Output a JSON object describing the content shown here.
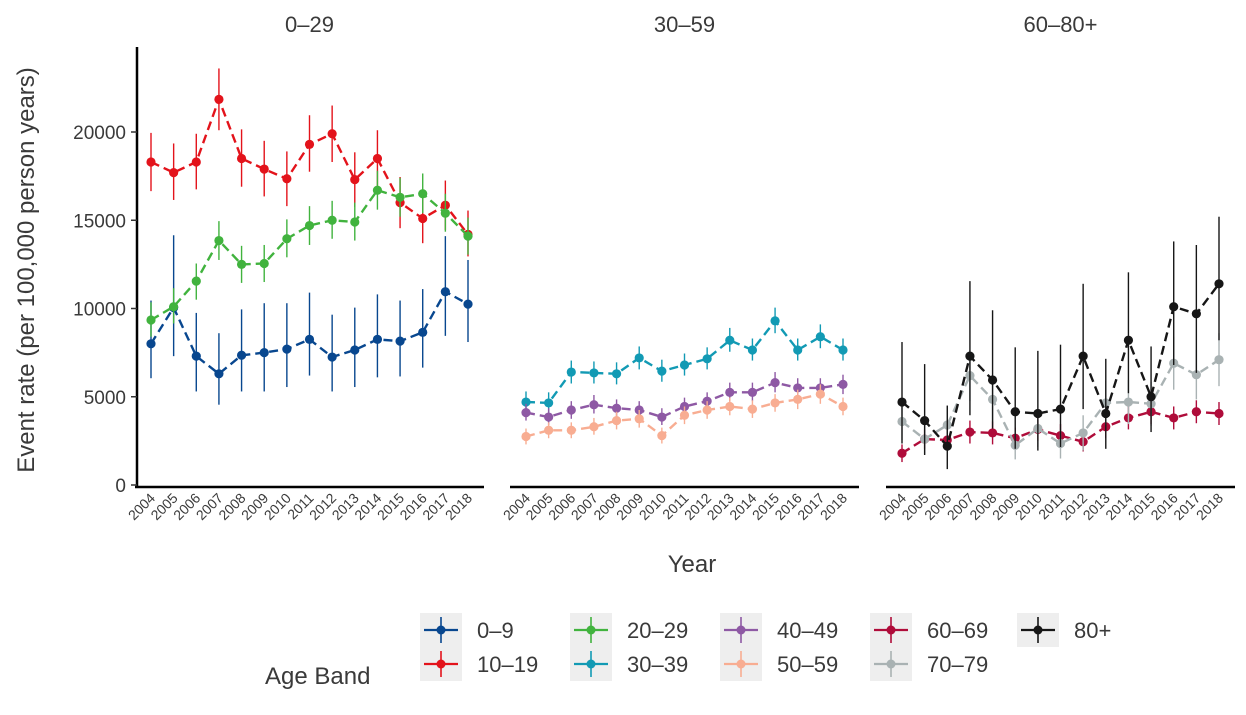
{
  "chart_data": {
    "type": "line",
    "ylabel": "Event rate (per 100,000 person years)",
    "xlabel": "Year",
    "ylim": [
      0,
      24500
    ],
    "yticks": [
      0,
      5000,
      10000,
      15000,
      20000
    ],
    "x": [
      "2004",
      "2005",
      "2006",
      "2007",
      "2008",
      "2009",
      "2010",
      "2011",
      "2012",
      "2013",
      "2014",
      "2015",
      "2016",
      "2017",
      "2018"
    ],
    "panels": [
      {
        "title": "0–29",
        "series": [
          "0–9",
          "10–19",
          "20–29"
        ]
      },
      {
        "title": "30–59",
        "series": [
          "30–39",
          "40–49",
          "50–59"
        ]
      },
      {
        "title": "60–80+",
        "series": [
          "60–69",
          "70–79",
          "80+"
        ]
      }
    ],
    "legend": {
      "title": "Age Band",
      "position": "bottom"
    },
    "series": [
      {
        "name": "0–9",
        "color": "#08478f",
        "values": [
          8000,
          10050,
          7300,
          6300,
          7350,
          7500,
          7700,
          8250,
          7250,
          7650,
          8250,
          8150,
          8650,
          10950,
          10250
        ],
        "lower": [
          6050,
          7300,
          5300,
          4550,
          5300,
          5300,
          5550,
          6200,
          5300,
          5550,
          6100,
          6150,
          6650,
          8450,
          8100
        ],
        "upper": [
          10450,
          14150,
          9750,
          8600,
          9950,
          10300,
          10300,
          10900,
          9650,
          10050,
          10800,
          10450,
          11100,
          14100,
          12750
        ]
      },
      {
        "name": "10–19",
        "color": "#e3131b",
        "values": [
          18300,
          17700,
          18300,
          21850,
          18500,
          17900,
          17350,
          19300,
          19900,
          17300,
          18500,
          16000,
          15100,
          15850,
          14200
        ],
        "lower": [
          16650,
          16150,
          16750,
          20100,
          16900,
          16350,
          15800,
          17750,
          18300,
          15750,
          16900,
          14550,
          13700,
          14450,
          12950
        ],
        "upper": [
          19950,
          19350,
          19900,
          23600,
          20150,
          19500,
          18900,
          20950,
          21500,
          18850,
          20100,
          17450,
          16500,
          17250,
          15550
        ]
      },
      {
        "name": "20–29",
        "color": "#41b33e",
        "values": [
          9350,
          10100,
          11550,
          13850,
          12500,
          12550,
          13950,
          14700,
          15000,
          14900,
          16700,
          16300,
          16500,
          15400,
          14100
        ],
        "lower": [
          8400,
          9150,
          10500,
          12750,
          11450,
          11500,
          12900,
          13600,
          13950,
          13850,
          15600,
          15200,
          15400,
          14350,
          13050
        ],
        "upper": [
          10350,
          11150,
          12550,
          14950,
          13550,
          13600,
          15050,
          15800,
          16100,
          16000,
          17800,
          17400,
          17650,
          16500,
          15150
        ]
      },
      {
        "name": "30–39",
        "color": "#129ab4",
        "values": [
          4700,
          4650,
          6400,
          6350,
          6300,
          7200,
          6450,
          6800,
          7150,
          8200,
          7650,
          9300,
          7650,
          8400,
          7650
        ],
        "lower": [
          4100,
          4050,
          5750,
          5750,
          5700,
          6550,
          5850,
          6200,
          6550,
          7550,
          7050,
          8600,
          7050,
          7750,
          7050
        ],
        "upper": [
          5300,
          5250,
          7050,
          7000,
          6950,
          7850,
          7100,
          7450,
          7800,
          8900,
          8300,
          10050,
          8300,
          9100,
          8300
        ]
      },
      {
        "name": "40–49",
        "color": "#8e59a4",
        "values": [
          4100,
          3850,
          4250,
          4550,
          4350,
          4250,
          3850,
          4450,
          4750,
          5250,
          5250,
          5800,
          5500,
          5500,
          5700
        ],
        "lower": [
          3650,
          3400,
          3750,
          4050,
          3850,
          3750,
          3400,
          3950,
          4250,
          4750,
          4750,
          5250,
          5000,
          5000,
          5150
        ],
        "upper": [
          4600,
          4350,
          4750,
          5100,
          4850,
          4750,
          4350,
          4950,
          5250,
          5800,
          5800,
          6400,
          6050,
          6050,
          6250
        ]
      },
      {
        "name": "50–59",
        "color": "#f8ad92",
        "values": [
          2750,
          3100,
          3100,
          3300,
          3650,
          3750,
          2800,
          3950,
          4250,
          4450,
          4300,
          4650,
          4850,
          5150,
          4450
        ],
        "lower": [
          2300,
          2650,
          2650,
          2850,
          3150,
          3250,
          2350,
          3450,
          3750,
          3950,
          3800,
          4150,
          4300,
          4600,
          3950
        ],
        "upper": [
          3200,
          3550,
          3550,
          3800,
          4150,
          4250,
          3250,
          4450,
          4750,
          4950,
          4800,
          5150,
          5400,
          5700,
          4950
        ]
      },
      {
        "name": "60–69",
        "color": "#af0c3a",
        "values": [
          1800,
          2600,
          2550,
          3000,
          2950,
          2650,
          3150,
          2800,
          2450,
          3300,
          3800,
          4150,
          3800,
          4150,
          4050
        ],
        "lower": [
          1300,
          2050,
          1950,
          2350,
          2300,
          2050,
          2500,
          2200,
          1900,
          2650,
          3150,
          3450,
          3150,
          3500,
          3400
        ],
        "upper": [
          2300,
          3150,
          3150,
          3650,
          3600,
          3250,
          3800,
          3450,
          3000,
          3950,
          4450,
          4850,
          4450,
          4800,
          4700
        ]
      },
      {
        "name": "70–79",
        "color": "#a9b2b3",
        "values": [
          3600,
          2600,
          3400,
          6200,
          4850,
          2250,
          3200,
          2350,
          2950,
          4650,
          4700,
          4600,
          6900,
          6250,
          7100
        ],
        "lower": [
          2550,
          1750,
          2300,
          4750,
          3550,
          1450,
          2150,
          1500,
          1950,
          3400,
          3450,
          3350,
          5400,
          4850,
          5600
        ],
        "upper": [
          4650,
          3450,
          4500,
          7650,
          6150,
          3050,
          4250,
          3200,
          3950,
          5900,
          5950,
          5850,
          8400,
          7650,
          8600
        ]
      },
      {
        "name": "80+",
        "color": "#161616",
        "values": [
          4700,
          3650,
          2200,
          7300,
          5950,
          4150,
          4050,
          4300,
          7300,
          4050,
          8200,
          5000,
          10100,
          9700,
          11400
        ],
        "lower": [
          2350,
          1700,
          900,
          3950,
          3200,
          2050,
          1950,
          2150,
          4300,
          2050,
          5200,
          3000,
          6800,
          6350,
          8200
        ],
        "upper": [
          8100,
          6850,
          4500,
          11550,
          9900,
          7800,
          7600,
          7950,
          11400,
          7150,
          12050,
          7850,
          13800,
          13600,
          15200
        ]
      }
    ]
  }
}
